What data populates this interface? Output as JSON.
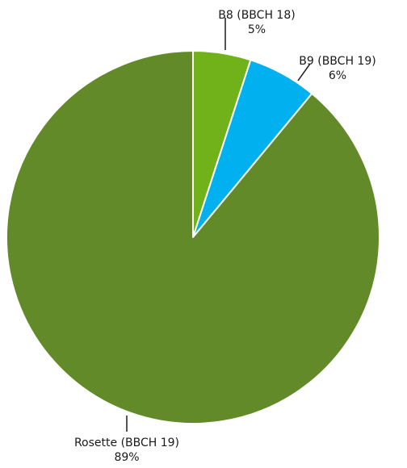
{
  "chart_data": {
    "type": "pie",
    "slices": [
      {
        "label": "B8 (BBCH 18)",
        "value": 5,
        "value_label": "5%",
        "color": "#71b21a"
      },
      {
        "label": "B9 (BBCH 19)",
        "value": 6,
        "value_label": "6%",
        "color": "#00b0ef"
      },
      {
        "label": "Rosette (BBCH 19)",
        "value": 89,
        "value_label": "89%",
        "color": "#628a28"
      }
    ],
    "start_angle": "12 o'clock",
    "direction": "clockwise",
    "slice_border_color": "#ffffff",
    "legend": "none",
    "data_labels": "outside with leader lines"
  }
}
